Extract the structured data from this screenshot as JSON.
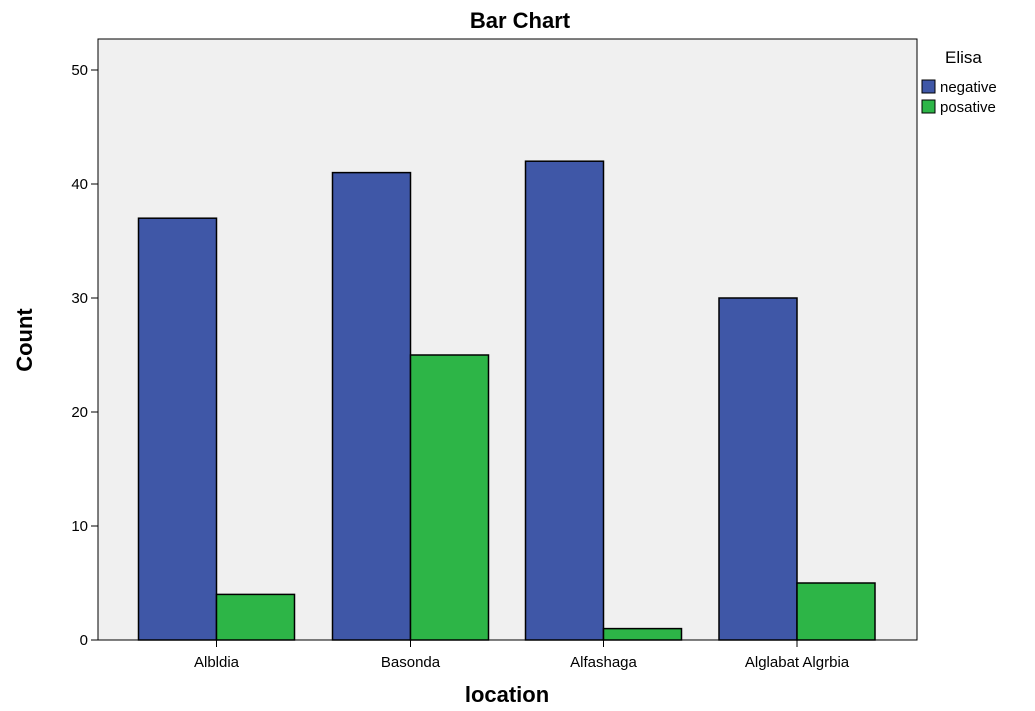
{
  "chart_data": {
    "type": "bar",
    "title": "Bar Chart",
    "xlabel": "location",
    "ylabel": "Count",
    "categories": [
      "Albldia",
      "Basonda",
      "Alfashaga",
      "Alglabat Algrbia"
    ],
    "series": [
      {
        "name": "negative",
        "values": [
          37,
          41,
          42,
          30
        ],
        "color": "#3f57a7"
      },
      {
        "name": "posative",
        "values": [
          4,
          25,
          1,
          5
        ],
        "color": "#2db547"
      }
    ],
    "ylim": [
      0,
      53
    ],
    "yticks": [
      0,
      10,
      20,
      30,
      40,
      50
    ],
    "grid": false,
    "plot_background": "#f0f0f0",
    "legend": {
      "title": "Elisa",
      "position": "top-right-outside"
    }
  }
}
